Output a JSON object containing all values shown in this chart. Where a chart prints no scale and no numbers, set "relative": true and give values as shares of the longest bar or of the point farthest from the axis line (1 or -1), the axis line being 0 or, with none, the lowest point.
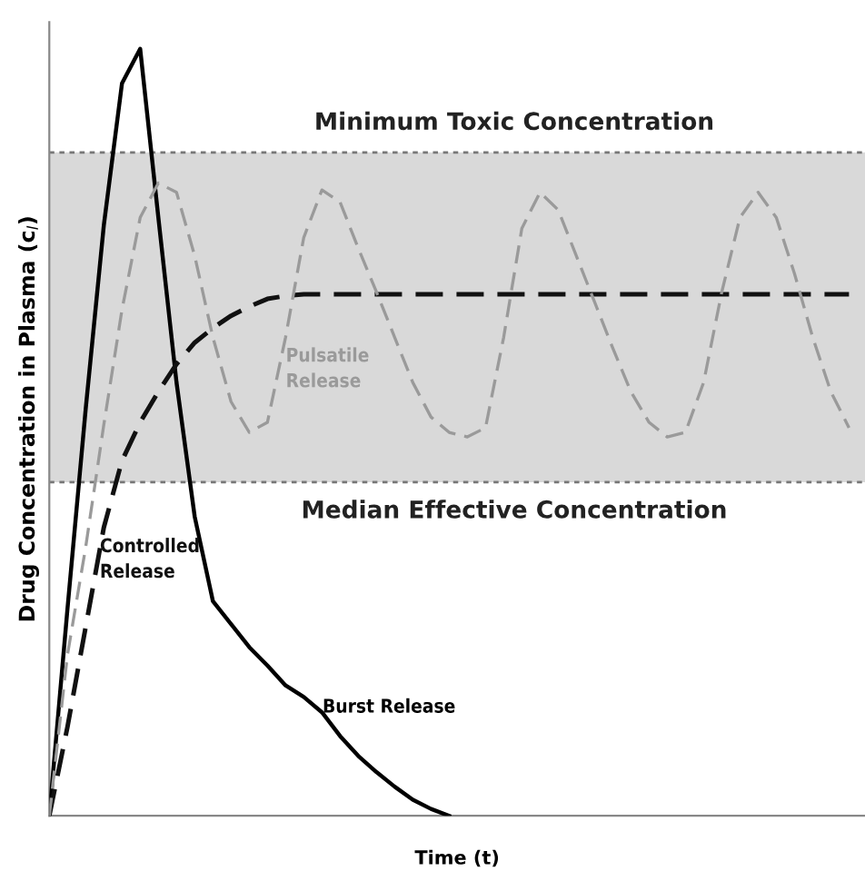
{
  "chart_data": {
    "type": "line",
    "relative": true,
    "xlabel": "Time (t)",
    "ylabel": "Drug Concentration in Plasma (c$_{l}$)",
    "categories": [
      null,
      null,
      null,
      null,
      null,
      null,
      null,
      null,
      null,
      null,
      null,
      null,
      null,
      null,
      null,
      null,
      null,
      null,
      null,
      null,
      null,
      null,
      null,
      null,
      null,
      null,
      null,
      null,
      null,
      null,
      null,
      null,
      null,
      null,
      null,
      null,
      null,
      null,
      null,
      null,
      null,
      null,
      null,
      null,
      null
    ],
    "series": [
      {
        "name": "Burst Release",
        "color": "#000000",
        "line_style": "solid",
        "values": [
          0,
          0.27,
          0.53,
          0.77,
          0.955,
          1,
          0.78,
          0.565,
          0.39,
          0.28,
          0.25,
          0.22,
          0.196,
          0.17,
          0.155,
          0.135,
          0.104,
          0.078,
          0.057,
          0.038,
          0.021,
          0.009,
          0,
          null,
          null,
          null,
          null,
          null,
          null,
          null,
          null,
          null,
          null,
          null,
          null,
          null,
          null,
          null,
          null,
          null,
          null,
          null,
          null,
          null,
          null
        ]
      },
      {
        "name": "Controlled\nRelease",
        "color": "#111111",
        "line_style": "dashed",
        "values": [
          0,
          0.116,
          0.246,
          0.376,
          0.463,
          0.513,
          0.553,
          0.589,
          0.617,
          0.636,
          0.652,
          0.664,
          0.674,
          0.678,
          0.68,
          0.68,
          0.68,
          0.68,
          0.68,
          0.68,
          0.68,
          0.68,
          0.68,
          0.68,
          0.68,
          0.68,
          0.68,
          0.68,
          0.68,
          0.68,
          0.68,
          0.68,
          0.68,
          0.68,
          0.68,
          0.68,
          0.68,
          0.68,
          0.68,
          0.68,
          0.68,
          0.68,
          0.68,
          0.68,
          0.68
        ]
      },
      {
        "name": "Pulsatile\nRelease",
        "color": "#9a9a9a",
        "line_style": "dashed",
        "values": [
          0,
          0.21,
          0.35,
          0.51,
          0.66,
          0.78,
          0.825,
          0.813,
          0.73,
          0.624,
          0.54,
          0.5,
          0.513,
          0.624,
          0.754,
          0.816,
          0.8,
          0.74,
          0.683,
          0.624,
          0.565,
          0.52,
          0.5,
          0.494,
          0.506,
          0.624,
          0.766,
          0.813,
          0.79,
          0.73,
          0.67,
          0.61,
          0.553,
          0.513,
          0.494,
          0.5,
          0.565,
          0.683,
          0.78,
          0.813,
          0.78,
          0.707,
          0.624,
          0.553,
          0.506
        ]
      }
    ],
    "bands": [
      {
        "axis": "y",
        "from": 0.435,
        "to": 0.865,
        "color": "#d9d9d9"
      }
    ],
    "ref_lines": [
      {
        "axis": "y",
        "value": 0.865,
        "label": "Minimum Toxic Concentration",
        "color": "#777777",
        "line_style": "dotted"
      },
      {
        "axis": "y",
        "value": 0.435,
        "label": "Median Effective Concentration",
        "color": "#777777",
        "line_style": "dotted"
      }
    ],
    "grid": false,
    "legend": false
  }
}
